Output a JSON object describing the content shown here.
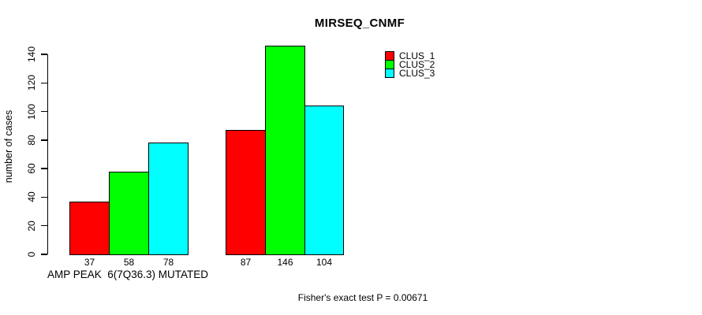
{
  "chart_data": {
    "type": "bar",
    "title": "MIRSEQ_CNMF",
    "ylabel": "number of cases",
    "xlabel": "AMP PEAK  6(7Q36.3) MUTATED",
    "annotation": "Fisher's exact test P = 0.00671",
    "categories": [
      "AMP PEAK  6(7Q36.3) MUTATED",
      ""
    ],
    "series": [
      {
        "name": "CLUS_1",
        "color": "#ff0000",
        "values": [
          37,
          87
        ]
      },
      {
        "name": "CLUS_2",
        "color": "#00ff00",
        "values": [
          58,
          146
        ]
      },
      {
        "name": "CLUS_3",
        "color": "#00ffff",
        "values": [
          78,
          104
        ]
      }
    ],
    "yticks": [
      0,
      20,
      40,
      60,
      80,
      100,
      120,
      140
    ],
    "ylim": [
      0,
      140
    ],
    "grid": false,
    "legend_position": "top-right",
    "bar_border_color": "#000000",
    "value_labels_shown": true
  }
}
